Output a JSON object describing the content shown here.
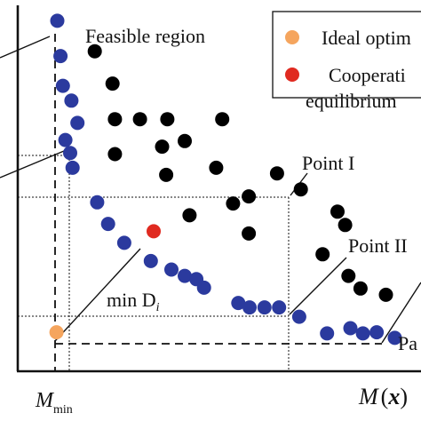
{
  "chart_data": {
    "type": "scatter",
    "title": "",
    "xlabel": "M(x)",
    "xlabel_parts": {
      "name": "M",
      "arg": "x"
    },
    "ylabel": "",
    "x_tick_label": {
      "main": "M",
      "sub": "min"
    },
    "xlim": [
      0,
      100
    ],
    "ylim": [
      0,
      100
    ],
    "grid": false,
    "series": [
      {
        "name": "",
        "color": "#2b3a9e",
        "points": [
          [
            9.8,
            94.4
          ],
          [
            10.6,
            84.9
          ],
          [
            11.2,
            76.9
          ],
          [
            13.3,
            72.9
          ],
          [
            14.8,
            66.9
          ],
          [
            11.8,
            62.3
          ],
          [
            13.0,
            58.8
          ],
          [
            13.6,
            54.8
          ],
          [
            19.7,
            45.5
          ],
          [
            22.4,
            39.7
          ],
          [
            26.4,
            34.6
          ],
          [
            33.0,
            29.7
          ],
          [
            38.1,
            27.4
          ],
          [
            41.4,
            25.7
          ],
          [
            44.3,
            24.8
          ],
          [
            46.2,
            22.5
          ],
          [
            54.7,
            18.4
          ],
          [
            57.5,
            17.2
          ],
          [
            61.2,
            17.2
          ],
          [
            64.8,
            17.2
          ],
          [
            69.8,
            14.7
          ],
          [
            76.7,
            10.2
          ],
          [
            82.5,
            11.6
          ],
          [
            85.6,
            10.2
          ],
          [
            89.0,
            10.5
          ],
          [
            93.5,
            9.0
          ]
        ]
      },
      {
        "name": "",
        "color": "#000000",
        "points": [
          [
            19.1,
            86.2
          ],
          [
            23.5,
            77.5
          ],
          [
            24.1,
            67.9
          ],
          [
            30.3,
            67.9
          ],
          [
            37.1,
            67.9
          ],
          [
            50.7,
            67.9
          ],
          [
            24.1,
            58.5
          ],
          [
            35.8,
            60.5
          ],
          [
            41.4,
            62.0
          ],
          [
            36.8,
            52.9
          ],
          [
            49.2,
            54.8
          ],
          [
            53.4,
            45.2
          ],
          [
            57.3,
            47.1
          ],
          [
            64.3,
            53.3
          ],
          [
            42.6,
            42.0
          ],
          [
            57.3,
            37.1
          ],
          [
            70.2,
            49.0
          ],
          [
            79.3,
            43.0
          ],
          [
            75.6,
            31.5
          ],
          [
            81.2,
            39.4
          ],
          [
            82.0,
            25.7
          ],
          [
            85.0,
            22.3
          ],
          [
            91.3,
            20.6
          ]
        ]
      },
      {
        "name": "Ideal optimum",
        "color": "#f5a55e",
        "points": [
          [
            9.6,
            10.5
          ]
        ]
      },
      {
        "name": "Cooperation equilibrium",
        "color": "#e02a20",
        "points": [
          [
            33.7,
            37.7
          ]
        ]
      }
    ],
    "annotations": [
      {
        "text": "Feasible region"
      },
      {
        "text": "Point I"
      },
      {
        "text": "Point II"
      },
      {
        "text": "min D",
        "subscript": "i"
      },
      {
        "text": "Pa"
      }
    ],
    "legend": {
      "placement": "top-right",
      "entries": [
        {
          "label": "Ideal optim",
          "color": "#f5a55e"
        },
        {
          "label": "Cooperati",
          "label_line2": "equilibrium",
          "color": "#e02a20"
        }
      ]
    }
  }
}
